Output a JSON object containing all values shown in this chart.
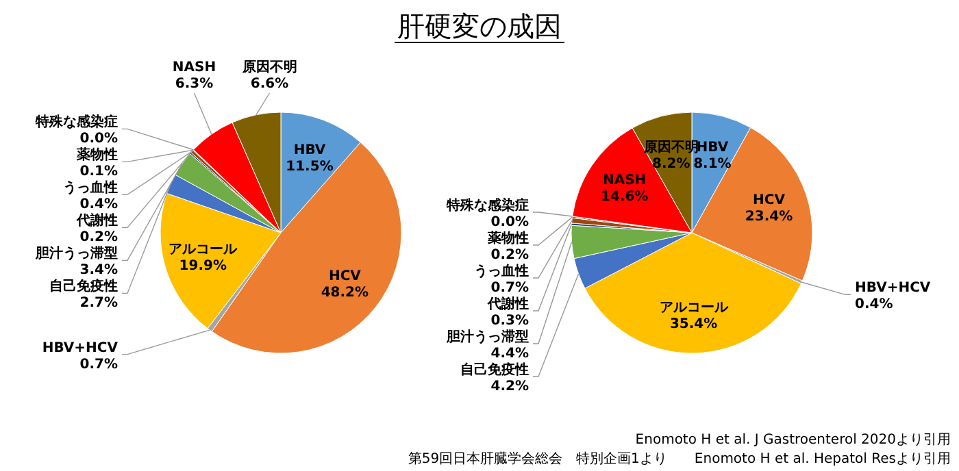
{
  "chart_data": [
    {
      "type": "pie",
      "title": "肝硬変の成因",
      "categories": [
        "HBV",
        "HCV",
        "HBV+HCV",
        "アルコール",
        "自己免疫性",
        "胆汁うっ滞型",
        "代謝性",
        "うっ血性",
        "薬物性",
        "特殊な感染症",
        "NASH",
        "原因不明"
      ],
      "values": [
        11.5,
        48.2,
        0.7,
        19.9,
        2.7,
        3.4,
        0.2,
        0.4,
        0.1,
        0.0,
        6.3,
        6.6
      ],
      "value_labels": [
        "11.5%",
        "48.2%",
        "0.7%",
        "19.9%",
        "2.7%",
        "3.4%",
        "0.2%",
        "0.4%",
        "0.1%",
        "0.0%",
        "6.3%",
        "6.6%"
      ],
      "colors": [
        "#5b9bd5",
        "#ed7d31",
        "#a5a5a5",
        "#ffc000",
        "#4472c4",
        "#70ad47",
        "#264478",
        "#9e480e",
        "#636363",
        "#997300",
        "#ff0000",
        "#7f6000"
      ]
    },
    {
      "type": "pie",
      "categories": [
        "HBV",
        "HCV",
        "HBV+HCV",
        "アルコール",
        "自己免疫性",
        "胆汁うっ滞型",
        "代謝性",
        "うっ血性",
        "薬物性",
        "特殊な感染症",
        "NASH",
        "原因不明"
      ],
      "values": [
        8.1,
        23.4,
        0.4,
        35.4,
        4.2,
        4.4,
        0.3,
        0.7,
        0.2,
        0.0,
        14.6,
        8.2
      ],
      "value_labels": [
        "8.1%",
        "23.4%",
        "0.4%",
        "35.4%",
        "4.2%",
        "4.4%",
        "0.3%",
        "0.7%",
        "0.2%",
        "0.0%",
        "14.6%",
        "8.2%"
      ],
      "colors": [
        "#5b9bd5",
        "#ed7d31",
        "#a5a5a5",
        "#ffc000",
        "#4472c4",
        "#70ad47",
        "#264478",
        "#9e480e",
        "#636363",
        "#997300",
        "#ff0000",
        "#7f6000"
      ],
      "annotations": [
        "Enomoto H et al. J Gastroenterol 2020より引用",
        "第59回日本肝臓学会総会　特別企画1より　　Enomoto H et al. Hepatol Resより引用"
      ]
    }
  ]
}
